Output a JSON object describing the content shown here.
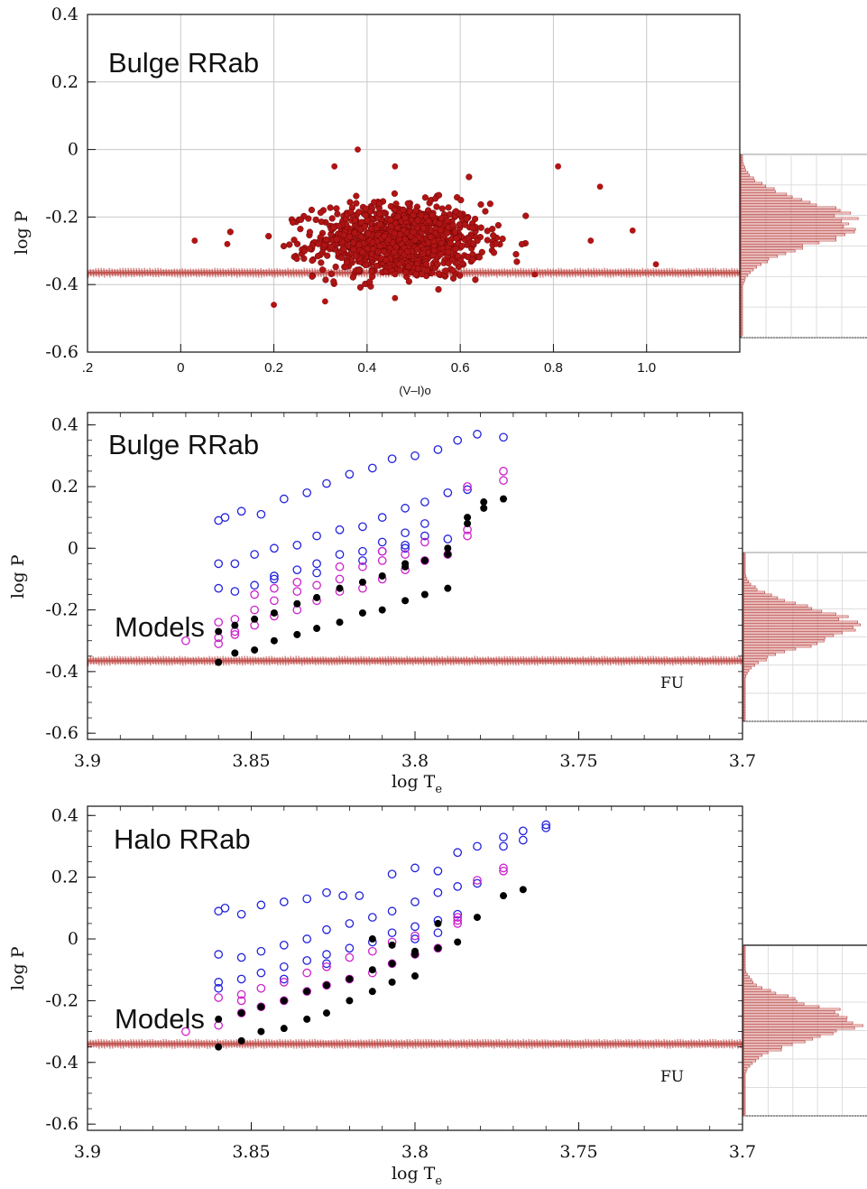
{
  "colors": {
    "bulge_dots": "#b01414",
    "reference_line": "#c0504d",
    "histogram": "#c0504d",
    "model_blue": "#2222dd",
    "model_magenta": "#cc22cc",
    "model_black": "#000000",
    "grid": "#c8c8c8"
  },
  "chart_data": [
    {
      "type": "scatter",
      "title": "Bulge RRab",
      "xlabel": "(V–I)o",
      "ylabel": "log P",
      "xlim": [
        -0.2,
        1.2
      ],
      "ylim": [
        -0.6,
        0.4
      ],
      "grid": true,
      "x_ticks": [
        ".2",
        "0",
        "0.2",
        "0.4",
        "0.6",
        "0.8",
        "1.0"
      ],
      "y_ticks": [
        "0.4",
        "0.2",
        "0",
        "-0.2",
        "-0.4",
        "-0.6"
      ],
      "reference_line_y": -0.365,
      "series": [
        {
          "marker": "filled-circle",
          "note": "about 1000 points; core distribution",
          "center": [
            0.47,
            -0.27
          ],
          "spread": [
            0.09,
            0.055
          ],
          "outliers": [
            [
              0.38,
              0.0
            ],
            [
              0.33,
              -0.05
            ],
            [
              0.46,
              -0.05
            ],
            [
              0.81,
              -0.05
            ],
            [
              0.9,
              -0.11
            ],
            [
              0.03,
              -0.27
            ],
            [
              0.1,
              -0.28
            ],
            [
              0.2,
              -0.46
            ],
            [
              0.97,
              -0.24
            ],
            [
              0.88,
              -0.27
            ],
            [
              1.02,
              -0.34
            ],
            [
              0.31,
              -0.45
            ],
            [
              0.46,
              -0.44
            ],
            [
              0.76,
              -0.37
            ]
          ]
        }
      ],
      "histogram": {
        "orientation": "horizontal",
        "range": [
          -0.56,
          -0.06
        ],
        "peak": -0.25,
        "width": 0.06
      }
    },
    {
      "type": "scatter",
      "title": "Bulge RRab",
      "annotation": "Models",
      "fu_label": "FU",
      "xlabel": "log T",
      "xlabel_sub": "e",
      "ylabel": "log P",
      "xlim": [
        3.9,
        3.7
      ],
      "ylim": [
        -0.62,
        0.44
      ],
      "grid": false,
      "x_ticks": [
        "3.9",
        "3.85",
        "3.8",
        "3.75",
        "3.7"
      ],
      "y_ticks": [
        "0.4",
        "0.2",
        "0",
        "-0.2",
        "-0.4",
        "-0.6"
      ],
      "reference_line_y": -0.365,
      "series": [
        {
          "marker": "open-circle-blue",
          "points": [
            [
              3.86,
              0.09
            ],
            [
              3.858,
              0.1
            ],
            [
              3.853,
              0.12
            ],
            [
              3.847,
              0.11
            ],
            [
              3.84,
              0.16
            ],
            [
              3.833,
              0.18
            ],
            [
              3.827,
              0.21
            ],
            [
              3.82,
              0.24
            ],
            [
              3.813,
              0.26
            ],
            [
              3.807,
              0.29
            ],
            [
              3.8,
              0.3
            ],
            [
              3.793,
              0.32
            ],
            [
              3.787,
              0.35
            ],
            [
              3.781,
              0.37
            ],
            [
              3.773,
              0.36
            ],
            [
              3.86,
              -0.05
            ],
            [
              3.86,
              -0.13
            ],
            [
              3.855,
              -0.05
            ],
            [
              3.849,
              -0.02
            ],
            [
              3.843,
              0.0
            ],
            [
              3.836,
              0.01
            ],
            [
              3.83,
              0.04
            ],
            [
              3.823,
              0.06
            ],
            [
              3.816,
              0.07
            ],
            [
              3.81,
              0.1
            ],
            [
              3.803,
              0.13
            ],
            [
              3.797,
              0.15
            ],
            [
              3.79,
              0.18
            ],
            [
              3.784,
              0.19
            ],
            [
              3.843,
              -0.09
            ],
            [
              3.836,
              -0.07
            ],
            [
              3.83,
              -0.05
            ],
            [
              3.823,
              -0.02
            ],
            [
              3.816,
              -0.01
            ],
            [
              3.81,
              0.02
            ],
            [
              3.803,
              0.05
            ],
            [
              3.797,
              0.08
            ],
            [
              3.855,
              -0.14
            ],
            [
              3.849,
              -0.12
            ],
            [
              3.843,
              -0.1
            ],
            [
              3.83,
              -0.08
            ],
            [
              3.816,
              -0.04
            ],
            [
              3.803,
              0.0
            ],
            [
              3.79,
              0.03
            ],
            [
              3.797,
              0.04
            ],
            [
              3.803,
              0.01
            ],
            [
              3.81,
              -0.01
            ]
          ]
        },
        {
          "marker": "open-circle-magenta",
          "points": [
            [
              3.87,
              -0.3
            ],
            [
              3.86,
              -0.29
            ],
            [
              3.855,
              -0.27
            ],
            [
              3.849,
              -0.25
            ],
            [
              3.843,
              -0.22
            ],
            [
              3.836,
              -0.2
            ],
            [
              3.83,
              -0.17
            ],
            [
              3.823,
              -0.14
            ],
            [
              3.816,
              -0.13
            ],
            [
              3.81,
              -0.1
            ],
            [
              3.803,
              -0.07
            ],
            [
              3.797,
              -0.04
            ],
            [
              3.79,
              -0.02
            ],
            [
              3.784,
              0.04
            ],
            [
              3.784,
              0.06
            ],
            [
              3.773,
              0.22
            ],
            [
              3.773,
              0.25
            ],
            [
              3.784,
              0.2
            ],
            [
              3.849,
              -0.2
            ],
            [
              3.843,
              -0.17
            ],
            [
              3.836,
              -0.14
            ],
            [
              3.83,
              -0.12
            ],
            [
              3.823,
              -0.1
            ],
            [
              3.816,
              -0.06
            ],
            [
              3.81,
              -0.04
            ],
            [
              3.803,
              -0.02
            ],
            [
              3.797,
              0.02
            ],
            [
              3.86,
              -0.31
            ],
            [
              3.855,
              -0.28
            ],
            [
              3.86,
              -0.24
            ],
            [
              3.855,
              -0.23
            ],
            [
              3.849,
              -0.15
            ],
            [
              3.843,
              -0.13
            ],
            [
              3.836,
              -0.11
            ],
            [
              3.823,
              -0.06
            ],
            [
              3.81,
              -0.01
            ]
          ]
        },
        {
          "marker": "filled-circle-black",
          "points": [
            [
              3.86,
              -0.37
            ],
            [
              3.855,
              -0.34
            ],
            [
              3.849,
              -0.33
            ],
            [
              3.843,
              -0.3
            ],
            [
              3.836,
              -0.28
            ],
            [
              3.83,
              -0.26
            ],
            [
              3.823,
              -0.24
            ],
            [
              3.816,
              -0.21
            ],
            [
              3.81,
              -0.2
            ],
            [
              3.803,
              -0.17
            ],
            [
              3.797,
              -0.15
            ],
            [
              3.79,
              -0.13
            ],
            [
              3.86,
              -0.27
            ],
            [
              3.855,
              -0.25
            ],
            [
              3.849,
              -0.23
            ],
            [
              3.843,
              -0.21
            ],
            [
              3.836,
              -0.18
            ],
            [
              3.83,
              -0.16
            ],
            [
              3.823,
              -0.13
            ],
            [
              3.816,
              -0.11
            ],
            [
              3.81,
              -0.09
            ],
            [
              3.803,
              -0.06
            ],
            [
              3.797,
              -0.04
            ],
            [
              3.79,
              -0.02
            ],
            [
              3.784,
              0.1
            ],
            [
              3.784,
              0.08
            ],
            [
              3.79,
              0.0
            ],
            [
              3.779,
              0.13
            ],
            [
              3.779,
              0.15
            ],
            [
              3.773,
              0.16
            ],
            [
              3.803,
              -0.05
            ]
          ]
        }
      ],
      "histogram": {
        "orientation": "horizontal",
        "range": [
          -0.56,
          -0.01
        ],
        "peak": -0.25,
        "width": 0.06
      }
    },
    {
      "type": "scatter",
      "title": "Halo RRab",
      "annotation": "Models",
      "fu_label": "FU",
      "xlabel": "log T",
      "xlabel_sub": "e",
      "ylabel": "log P",
      "xlim": [
        3.9,
        3.7
      ],
      "ylim": [
        -0.62,
        0.43
      ],
      "grid": false,
      "x_ticks": [
        "3.9",
        "3.85",
        "3.8",
        "3.75",
        "3.7"
      ],
      "y_ticks": [
        "0.4",
        "0.2",
        "0",
        "-0.2",
        "-0.4",
        "-0.6"
      ],
      "reference_line_y": -0.34,
      "series": [
        {
          "marker": "open-circle-blue",
          "points": [
            [
              3.86,
              0.09
            ],
            [
              3.858,
              0.1
            ],
            [
              3.853,
              0.08
            ],
            [
              3.847,
              0.11
            ],
            [
              3.84,
              0.12
            ],
            [
              3.833,
              0.13
            ],
            [
              3.827,
              0.15
            ],
            [
              3.822,
              0.14
            ],
            [
              3.817,
              0.14
            ],
            [
              3.807,
              0.21
            ],
            [
              3.8,
              0.23
            ],
            [
              3.793,
              0.22
            ],
            [
              3.787,
              0.28
            ],
            [
              3.781,
              0.3
            ],
            [
              3.773,
              0.33
            ],
            [
              3.767,
              0.35
            ],
            [
              3.76,
              0.37
            ],
            [
              3.86,
              -0.05
            ],
            [
              3.86,
              -0.14
            ],
            [
              3.853,
              -0.06
            ],
            [
              3.847,
              -0.04
            ],
            [
              3.84,
              -0.02
            ],
            [
              3.833,
              0.0
            ],
            [
              3.827,
              0.03
            ],
            [
              3.82,
              0.05
            ],
            [
              3.813,
              0.07
            ],
            [
              3.807,
              0.09
            ],
            [
              3.8,
              0.12
            ],
            [
              3.793,
              0.15
            ],
            [
              3.787,
              0.17
            ],
            [
              3.781,
              0.18
            ],
            [
              3.847,
              -0.11
            ],
            [
              3.84,
              -0.09
            ],
            [
              3.833,
              -0.07
            ],
            [
              3.827,
              -0.05
            ],
            [
              3.82,
              -0.03
            ],
            [
              3.813,
              -0.01
            ],
            [
              3.807,
              0.02
            ],
            [
              3.8,
              0.04
            ],
            [
              3.793,
              0.06
            ],
            [
              3.787,
              0.08
            ],
            [
              3.853,
              -0.13
            ],
            [
              3.84,
              -0.13
            ],
            [
              3.827,
              -0.08
            ],
            [
              3.8,
              0.0
            ],
            [
              3.793,
              0.02
            ],
            [
              3.773,
              0.3
            ],
            [
              3.767,
              0.32
            ],
            [
              3.76,
              0.36
            ],
            [
              3.86,
              -0.16
            ]
          ]
        },
        {
          "marker": "open-circle-magenta",
          "points": [
            [
              3.87,
              -0.3
            ],
            [
              3.86,
              -0.28
            ],
            [
              3.853,
              -0.24
            ],
            [
              3.847,
              -0.22
            ],
            [
              3.84,
              -0.2
            ],
            [
              3.833,
              -0.17
            ],
            [
              3.827,
              -0.15
            ],
            [
              3.82,
              -0.13
            ],
            [
              3.813,
              -0.11
            ],
            [
              3.807,
              -0.08
            ],
            [
              3.8,
              -0.05
            ],
            [
              3.793,
              -0.03
            ],
            [
              3.787,
              0.05
            ],
            [
              3.787,
              0.06
            ],
            [
              3.773,
              0.22
            ],
            [
              3.773,
              0.23
            ],
            [
              3.781,
              0.19
            ],
            [
              3.787,
              0.07
            ],
            [
              3.853,
              -0.18
            ],
            [
              3.847,
              -0.16
            ],
            [
              3.84,
              -0.14
            ],
            [
              3.833,
              -0.11
            ],
            [
              3.827,
              -0.09
            ],
            [
              3.82,
              -0.06
            ],
            [
              3.813,
              -0.04
            ],
            [
              3.807,
              -0.01
            ],
            [
              3.8,
              0.01
            ],
            [
              3.86,
              -0.19
            ],
            [
              3.853,
              -0.2
            ]
          ]
        },
        {
          "marker": "filled-circle-black",
          "points": [
            [
              3.86,
              -0.35
            ],
            [
              3.853,
              -0.33
            ],
            [
              3.847,
              -0.3
            ],
            [
              3.84,
              -0.29
            ],
            [
              3.833,
              -0.26
            ],
            [
              3.827,
              -0.24
            ],
            [
              3.82,
              -0.2
            ],
            [
              3.813,
              -0.17
            ],
            [
              3.807,
              -0.14
            ],
            [
              3.8,
              -0.12
            ],
            [
              3.86,
              -0.26
            ],
            [
              3.853,
              -0.24
            ],
            [
              3.847,
              -0.22
            ],
            [
              3.84,
              -0.2
            ],
            [
              3.833,
              -0.17
            ],
            [
              3.827,
              -0.15
            ],
            [
              3.82,
              -0.13
            ],
            [
              3.813,
              -0.1
            ],
            [
              3.807,
              -0.08
            ],
            [
              3.8,
              -0.05
            ],
            [
              3.793,
              -0.03
            ],
            [
              3.787,
              -0.01
            ],
            [
              3.781,
              0.07
            ],
            [
              3.773,
              0.14
            ],
            [
              3.767,
              0.16
            ],
            [
              3.8,
              -0.04
            ],
            [
              3.807,
              -0.02
            ],
            [
              3.813,
              0.0
            ],
            [
              3.793,
              0.05
            ]
          ]
        }
      ],
      "histogram": {
        "orientation": "horizontal",
        "range": [
          -0.56,
          0.0
        ],
        "peak": -0.25,
        "width": 0.06
      }
    }
  ]
}
